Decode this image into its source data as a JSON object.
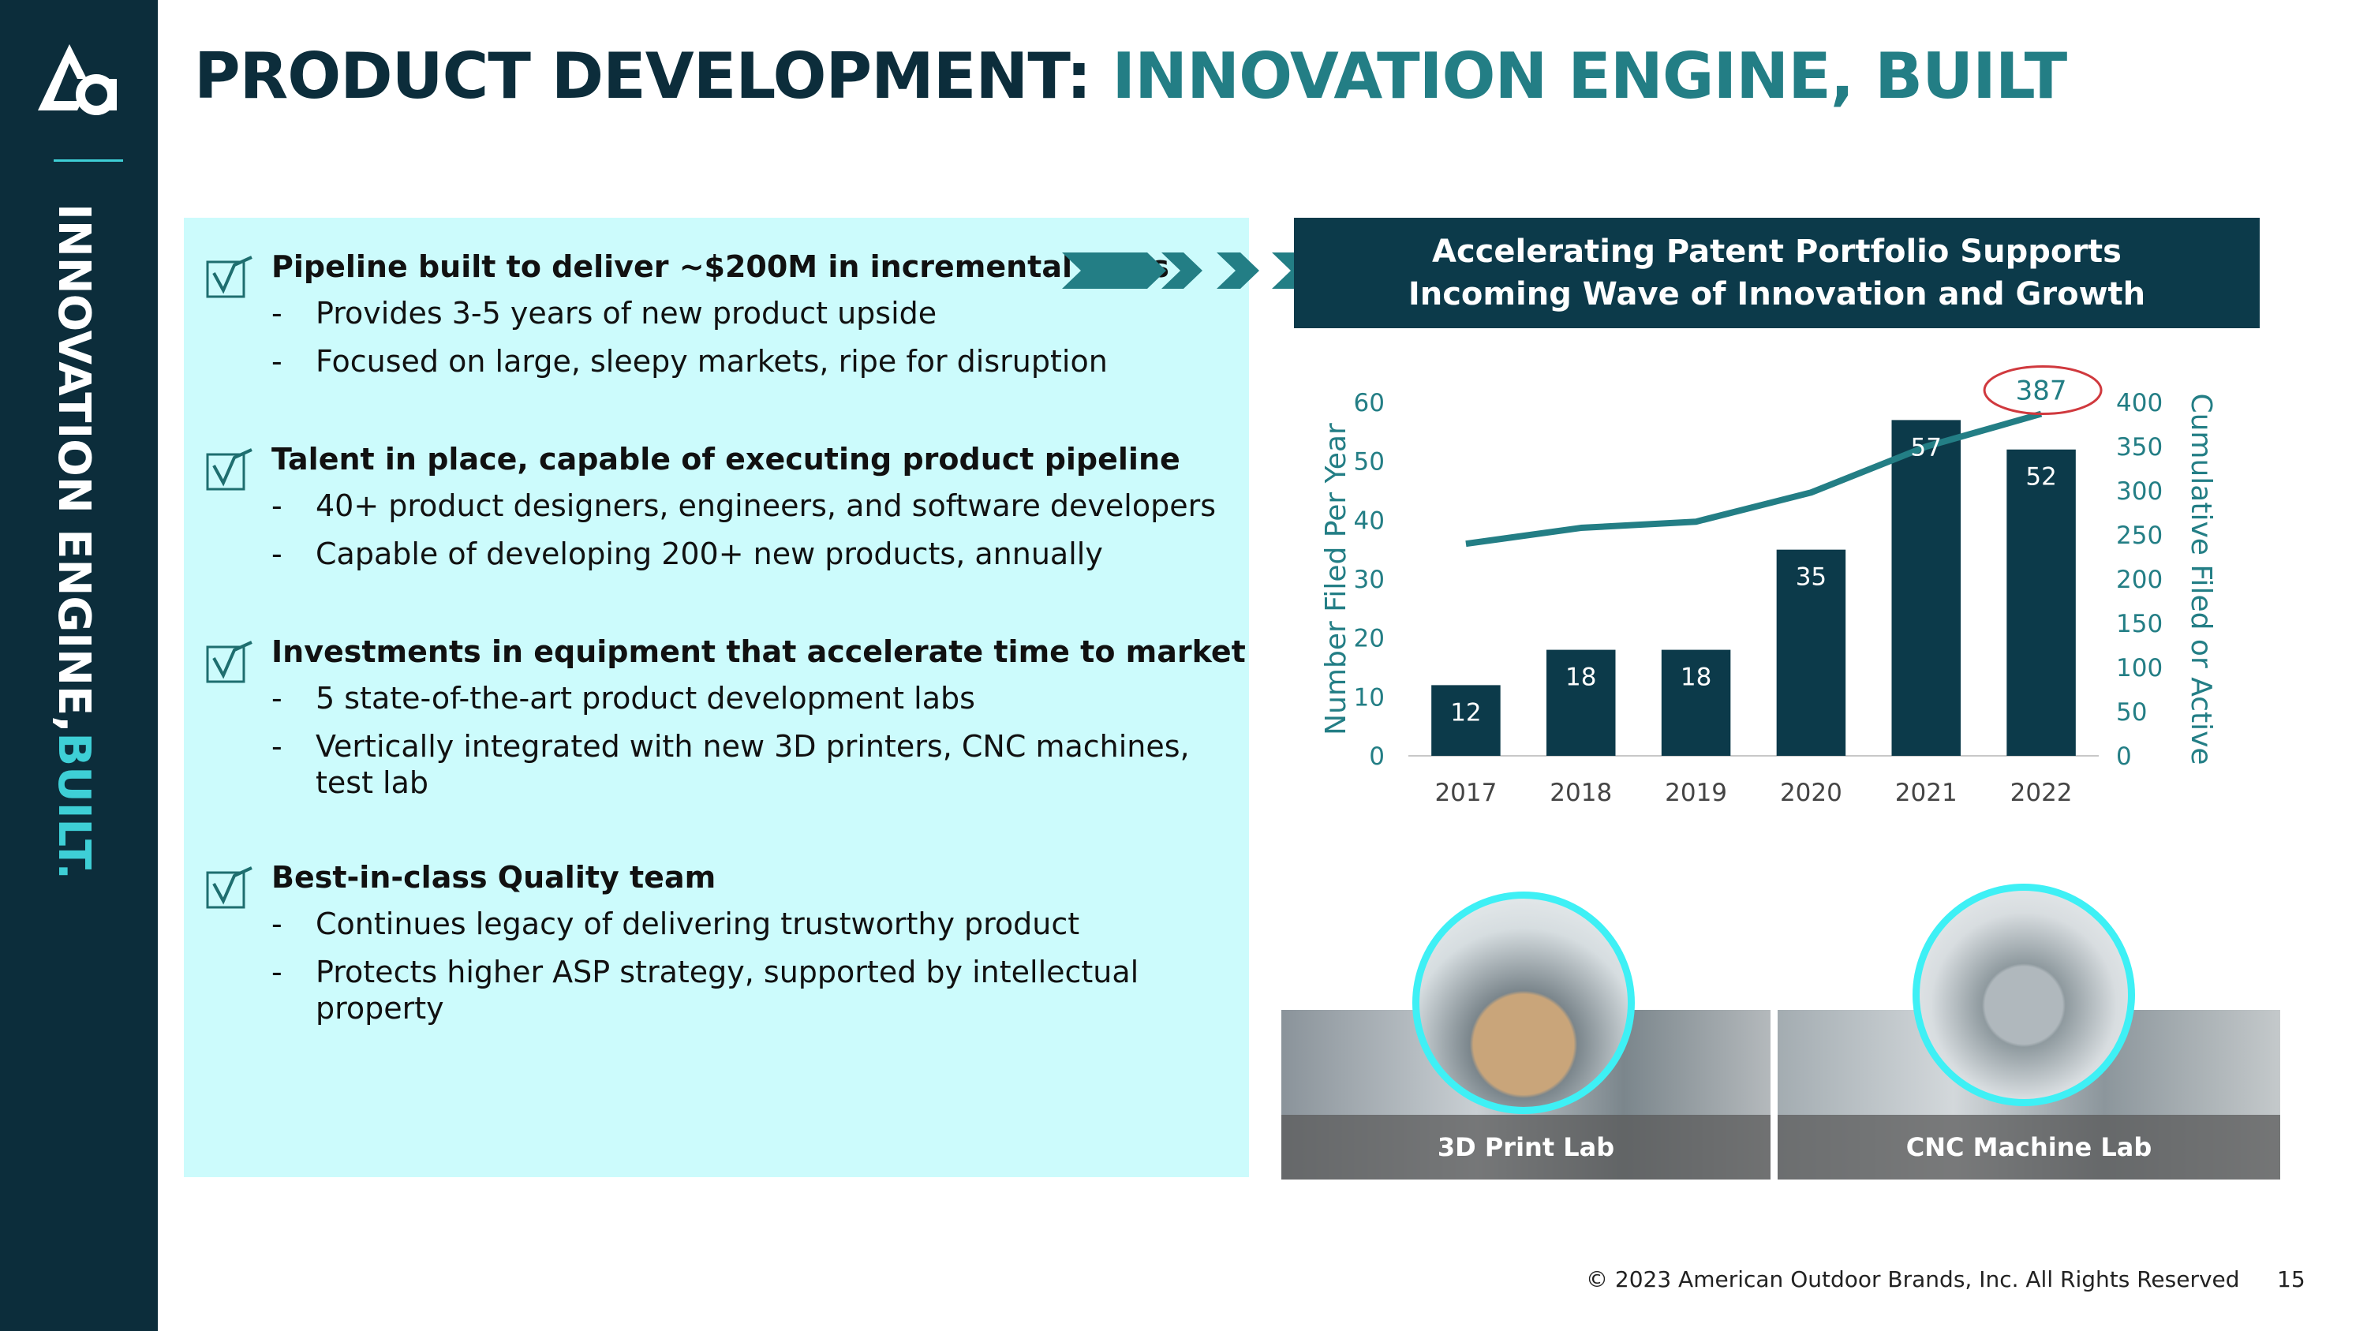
{
  "sidebar": {
    "vertical_text": "INNOVATION ENGINE,",
    "vertical_accent": "BUILT."
  },
  "title": {
    "part1": "PRODUCT DEVELOPMENT:",
    "part2": "INNOVATION ENGINE, BUILT"
  },
  "points": [
    {
      "heading": "Pipeline built to deliver ~$200M in incremental sales",
      "bullets": [
        "Provides 3-5 years of new product upside",
        "Focused on large, sleepy markets, ripe for disruption"
      ]
    },
    {
      "heading": "Talent in place, capable of executing product pipeline",
      "bullets": [
        "40+ product designers, engineers, and software developers",
        "Capable of developing 200+ new products, annually"
      ]
    },
    {
      "heading": "Investments in equipment that accelerate time to market",
      "bullets": [
        "5 state-of-the-art product development labs",
        "Vertically integrated with new 3D printers, CNC machines, test lab"
      ]
    },
    {
      "heading": "Best-in-class Quality team",
      "bullets": [
        "Continues legacy of delivering trustworthy product",
        "Protects higher ASP strategy, supported by intellectual property"
      ]
    }
  ],
  "chart_header": {
    "line1": "Accelerating Patent Portfolio Supports",
    "line2": "Incoming Wave of Innovation and Growth"
  },
  "chart_data": {
    "type": "bar",
    "categories": [
      "2017",
      "2018",
      "2019",
      "2020",
      "2021",
      "2022"
    ],
    "series": [
      {
        "type": "bar",
        "axis": "left",
        "values": [
          12,
          18,
          18,
          35,
          57,
          52
        ]
      },
      {
        "type": "line",
        "axis": "right",
        "values": [
          240,
          258,
          265,
          298,
          350,
          387
        ]
      }
    ],
    "ylabel": "Number Filed Per Year",
    "y2label": "Cumulative Filed or Active",
    "ylim": [
      0,
      60
    ],
    "y2lim": [
      0,
      400
    ],
    "yticks": [
      0,
      10,
      20,
      30,
      40,
      50,
      60
    ],
    "y2ticks": [
      0,
      50,
      100,
      150,
      200,
      250,
      300,
      350,
      400
    ],
    "highlight_label": "387",
    "colors": {
      "bar": "#0c3a4a",
      "line": "#237e85",
      "highlight": "#d0393e"
    }
  },
  "photos": [
    {
      "label": "3D Print Lab"
    },
    {
      "label": "CNC Machine Lab"
    }
  ],
  "footer": {
    "copyright": "© 2023 American Outdoor Brands, Inc. All Rights Reserved",
    "page": "15"
  }
}
